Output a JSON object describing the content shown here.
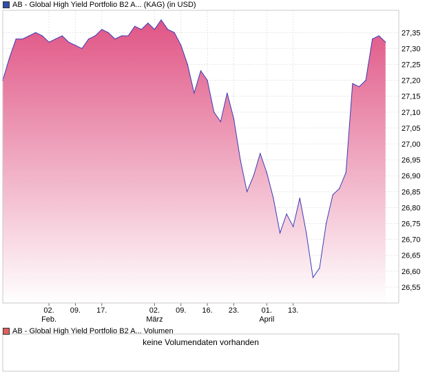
{
  "chart_data": {
    "type": "area",
    "title": "AB - Global High Yield Portfolio B2 A...",
    "subtitle": "(KAG) (in USD)",
    "legend": "AB - Global High Yield Portfolio B2 A... (KAG) (in USD)",
    "series": [
      {
        "name": "AB - Global High Yield Portfolio B2 A...",
        "values": [
          27.2,
          27.27,
          27.33,
          27.33,
          27.34,
          27.35,
          27.34,
          27.32,
          27.33,
          27.34,
          27.32,
          27.31,
          27.3,
          27.33,
          27.34,
          27.36,
          27.35,
          27.33,
          27.34,
          27.34,
          27.37,
          27.36,
          27.38,
          27.36,
          27.39,
          27.36,
          27.35,
          27.31,
          27.25,
          27.16,
          27.23,
          27.2,
          27.1,
          27.07,
          27.16,
          27.08,
          26.95,
          26.85,
          26.9,
          26.97,
          26.91,
          26.83,
          26.72,
          26.78,
          26.74,
          26.83,
          26.72,
          26.58,
          26.61,
          26.75,
          26.84,
          26.86,
          26.91,
          27.19,
          27.18,
          27.2,
          27.33,
          27.34,
          27.32
        ]
      }
    ],
    "x_range": [
      0,
      60
    ],
    "xticks": [
      {
        "x": 7,
        "label": "02."
      },
      {
        "x": 11,
        "label": "09."
      },
      {
        "x": 15,
        "label": "17."
      },
      {
        "x": 23,
        "label": "02."
      },
      {
        "x": 27,
        "label": "09."
      },
      {
        "x": 31,
        "label": "16."
      },
      {
        "x": 35,
        "label": "23."
      },
      {
        "x": 40,
        "label": "01."
      },
      {
        "x": 44,
        "label": "13."
      }
    ],
    "month_labels": [
      {
        "x": 7,
        "label": "Feb."
      },
      {
        "x": 23,
        "label": "März"
      },
      {
        "x": 40,
        "label": "April"
      }
    ],
    "ylim": [
      26.5,
      27.42
    ],
    "yticks": [
      26.55,
      26.6,
      26.65,
      26.7,
      26.75,
      26.8,
      26.85,
      26.9,
      26.95,
      27.0,
      27.05,
      27.1,
      27.15,
      27.2,
      27.25,
      27.3,
      27.35
    ],
    "ytick_labels": [
      "26,55",
      "26,60",
      "26,65",
      "26,70",
      "26,75",
      "26,80",
      "26,85",
      "26,90",
      "26,95",
      "27,00",
      "27,05",
      "27,10",
      "27,15",
      "27,20",
      "27,25",
      "27,30",
      "27,35"
    ],
    "grid": true,
    "line_color": "#3a3ab8",
    "fill_top_color": "#e05585",
    "fill_bottom_color": "#ffffff"
  },
  "volume_panel": {
    "legend": "AB - Global High Yield Portfolio B2 A... Volumen",
    "message": "keine Volumendaten vorhanden",
    "swatch_color": "#e06060"
  },
  "legend_swatch_color": "#2f4fa8"
}
